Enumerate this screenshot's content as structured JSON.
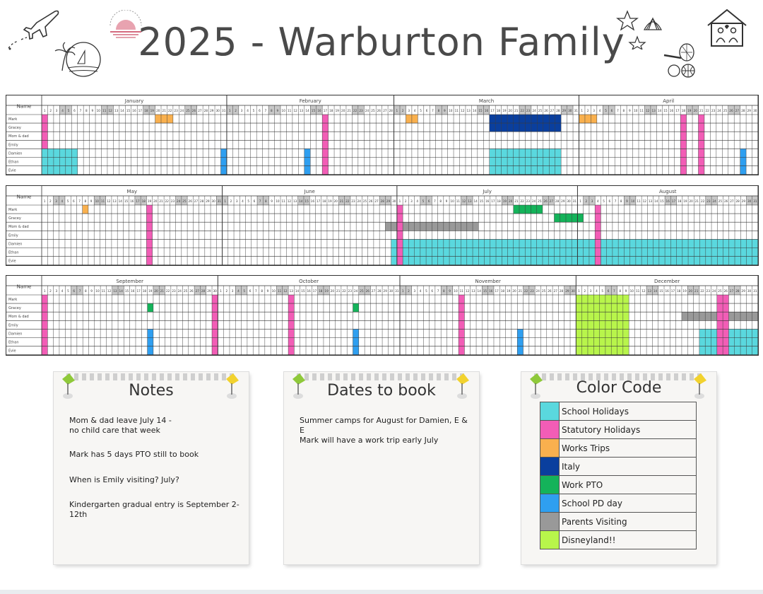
{
  "title": "2025 - Warburton Family",
  "name_header": "Name",
  "people": [
    "Mark",
    "Gracey",
    "Mom & dad",
    "Emily",
    "Damien",
    "Ethan",
    "Evie"
  ],
  "months": [
    "January",
    "February",
    "March",
    "April",
    "May",
    "June",
    "July",
    "August",
    "September",
    "October",
    "November",
    "December"
  ],
  "colors": {
    "school_holidays": "#5ad8de",
    "statutory_holidays": "#f25db6",
    "works_trips": "#f9b04e",
    "italy": "#0a3f9e",
    "work_pto": "#14b35a",
    "school_pd_day": "#2f9ff0",
    "parents_visiting": "#999999",
    "disneyland": "#b8f54b"
  },
  "events": [
    {
      "type": "statutory_holidays",
      "start": "2025-01-01",
      "end": "2025-01-01"
    },
    {
      "type": "school_holidays",
      "people": [
        "Damien",
        "Ethan",
        "Evie"
      ],
      "start": "2025-01-01",
      "end": "2025-01-06"
    },
    {
      "type": "works_trips",
      "people": [
        "Mark"
      ],
      "start": "2025-01-20",
      "end": "2025-01-22"
    },
    {
      "type": "school_pd_day",
      "people": [
        "Damien",
        "Ethan",
        "Evie"
      ],
      "start": "2025-01-31",
      "end": "2025-01-31"
    },
    {
      "type": "school_pd_day",
      "people": [
        "Damien",
        "Ethan",
        "Evie"
      ],
      "start": "2025-02-14",
      "end": "2025-02-14"
    },
    {
      "type": "statutory_holidays",
      "start": "2025-02-17",
      "end": "2025-02-17"
    },
    {
      "type": "works_trips",
      "people": [
        "Mark"
      ],
      "start": "2025-03-03",
      "end": "2025-03-04"
    },
    {
      "type": "italy",
      "people": [
        "Mark",
        "Gracey"
      ],
      "start": "2025-03-17",
      "end": "2025-03-28"
    },
    {
      "type": "school_holidays",
      "people": [
        "Damien",
        "Ethan",
        "Evie"
      ],
      "start": "2025-03-17",
      "end": "2025-03-28"
    },
    {
      "type": "works_trips",
      "people": [
        "Mark"
      ],
      "start": "2025-04-01",
      "end": "2025-04-03"
    },
    {
      "type": "statutory_holidays",
      "start": "2025-04-18",
      "end": "2025-04-18"
    },
    {
      "type": "statutory_holidays",
      "start": "2025-04-21",
      "end": "2025-04-21"
    },
    {
      "type": "school_pd_day",
      "people": [
        "Damien",
        "Ethan",
        "Evie"
      ],
      "start": "2025-04-28",
      "end": "2025-04-28"
    },
    {
      "type": "works_trips",
      "people": [
        "Mark"
      ],
      "start": "2025-05-08",
      "end": "2025-05-08"
    },
    {
      "type": "statutory_holidays",
      "start": "2025-05-19",
      "end": "2025-05-19"
    },
    {
      "type": "parents_visiting",
      "people": [
        "Mom & dad"
      ],
      "start": "2025-06-29",
      "end": "2025-07-14"
    },
    {
      "type": "school_holidays",
      "people": [
        "Damien",
        "Ethan",
        "Evie"
      ],
      "start": "2025-06-30",
      "end": "2025-08-31"
    },
    {
      "type": "statutory_holidays",
      "start": "2025-07-01",
      "end": "2025-07-01"
    },
    {
      "type": "work_pto",
      "people": [
        "Mark"
      ],
      "start": "2025-07-21",
      "end": "2025-07-25"
    },
    {
      "type": "work_pto",
      "people": [
        "Gracey"
      ],
      "start": "2025-07-28",
      "end": "2025-08-01"
    },
    {
      "type": "statutory_holidays",
      "start": "2025-08-04",
      "end": "2025-08-04"
    },
    {
      "type": "statutory_holidays",
      "start": "2025-09-01",
      "end": "2025-09-01"
    },
    {
      "type": "work_pto",
      "people": [
        "Gracey"
      ],
      "start": "2025-09-19",
      "end": "2025-09-19"
    },
    {
      "type": "school_pd_day",
      "people": [
        "Damien",
        "Ethan",
        "Evie"
      ],
      "start": "2025-09-19",
      "end": "2025-09-19"
    },
    {
      "type": "statutory_holidays",
      "start": "2025-09-30",
      "end": "2025-09-30"
    },
    {
      "type": "statutory_holidays",
      "start": "2025-10-13",
      "end": "2025-10-13"
    },
    {
      "type": "work_pto",
      "people": [
        "Gracey"
      ],
      "start": "2025-10-24",
      "end": "2025-10-24"
    },
    {
      "type": "school_pd_day",
      "people": [
        "Damien",
        "Ethan",
        "Evie"
      ],
      "start": "2025-10-24",
      "end": "2025-10-24"
    },
    {
      "type": "statutory_holidays",
      "start": "2025-11-11",
      "end": "2025-11-11"
    },
    {
      "type": "school_pd_day",
      "people": [
        "Damien",
        "Ethan",
        "Evie"
      ],
      "start": "2025-11-21",
      "end": "2025-11-21"
    },
    {
      "type": "disneyland",
      "people": [
        "Mark",
        "Gracey",
        "Mom & dad",
        "Emily",
        "Damien",
        "Ethan",
        "Evie"
      ],
      "start": "2025-12-01",
      "end": "2025-12-09"
    },
    {
      "type": "parents_visiting",
      "people": [
        "Mom & dad"
      ],
      "start": "2025-12-19",
      "end": "2025-12-31"
    },
    {
      "type": "school_holidays",
      "people": [
        "Damien",
        "Ethan",
        "Evie"
      ],
      "start": "2025-12-22",
      "end": "2025-12-31"
    },
    {
      "type": "statutory_holidays",
      "start": "2025-12-25",
      "end": "2025-12-26"
    }
  ],
  "notes": {
    "title": "Notes",
    "lines": [
      "Mom & dad leave July 14 -\nno child care that week",
      "Mark has 5 days PTO still to book",
      "When is Emily visiting? July?",
      "Kindergarten gradual entry is September 2-12th"
    ]
  },
  "dates_to_book": {
    "title": "Dates to book",
    "lines": [
      "Summer camps for August for Damien, E & E",
      "Mark will have a work trip early July"
    ]
  },
  "color_code": {
    "title": "Color Code",
    "items": [
      {
        "label": "School Holidays",
        "color": "#5ad8de"
      },
      {
        "label": "Statutory Holidays",
        "color": "#f25db6"
      },
      {
        "label": "Works Trips",
        "color": "#f9b04e"
      },
      {
        "label": "Italy",
        "color": "#0a3f9e"
      },
      {
        "label": "Work PTO",
        "color": "#14b35a"
      },
      {
        "label": "School PD day",
        "color": "#2f9ff0"
      },
      {
        "label": "Parents Visiting",
        "color": "#999999"
      },
      {
        "label": "Disneyland!!",
        "color": "#b8f54b"
      }
    ]
  }
}
